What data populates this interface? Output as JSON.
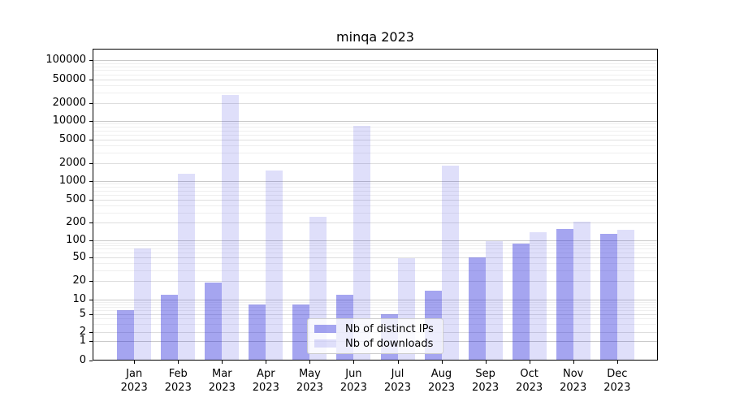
{
  "chart_data": {
    "type": "bar",
    "title": "minqa 2023",
    "yscale": "symlog",
    "grid": true,
    "legend_position": "lower center",
    "categories": [
      "Jan 2023",
      "Feb 2023",
      "Mar 2023",
      "Apr 2023",
      "May 2023",
      "Jun 2023",
      "Jul 2023",
      "Aug 2023",
      "Sep 2023",
      "Oct 2023",
      "Nov 2023",
      "Dec 2023"
    ],
    "yticks": [
      100000,
      50000,
      20000,
      10000,
      5000,
      2000,
      1000,
      500,
      200,
      100,
      50,
      20,
      10,
      5,
      2,
      1,
      0
    ],
    "ylim": [
      0,
      155000
    ],
    "series": [
      {
        "name": "Nb of distinct IPs",
        "color": "#2828dc",
        "alpha": 0.42,
        "values": [
          6,
          12,
          19,
          8,
          8,
          12,
          5,
          14,
          49,
          87,
          155,
          130
        ]
      },
      {
        "name": "Nb of downloads",
        "color": "#2828dc",
        "alpha": 0.15,
        "values": [
          70,
          1300,
          27000,
          1500,
          250,
          8400,
          48,
          1800,
          95,
          135,
          205,
          152
        ]
      }
    ],
    "colors": {
      "grid_major": "#c9c9c9",
      "grid_mid": "#dedede",
      "grid_minor": "#efefef",
      "spine": "#000000"
    }
  }
}
